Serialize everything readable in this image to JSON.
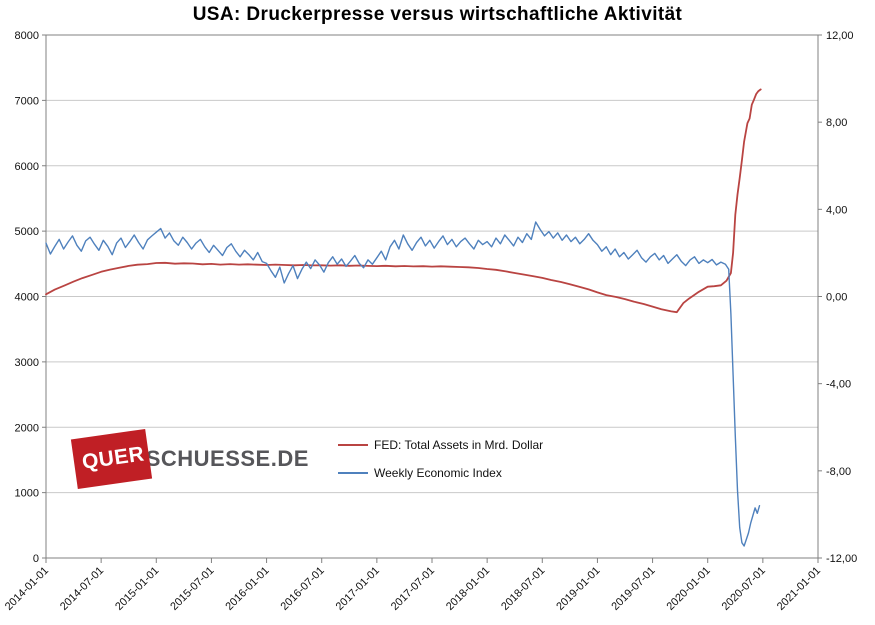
{
  "watermark": {
    "part1": "QUER",
    "part2": "SCHUESSE.DE"
  },
  "chart_data": {
    "type": "line",
    "title": "USA: Druckerpresse versus wirtschaftliche Aktivität",
    "x_range": [
      2014.0,
      2021.0
    ],
    "grid_color": "#c9c9c9",
    "border_color": "#808080",
    "y_left": {
      "min": 0,
      "max": 8000,
      "ticks": [
        "0",
        "1000",
        "2000",
        "3000",
        "4000",
        "5000",
        "6000",
        "7000",
        "8000"
      ]
    },
    "y_right": {
      "min": -12,
      "max": 12,
      "ticks": [
        "-12,00",
        "-8,00",
        "-4,00",
        "0,00",
        "4,00",
        "8,00",
        "12,00"
      ]
    },
    "x_ticks": [
      {
        "x": 2014.0,
        "label": "2014-01-01"
      },
      {
        "x": 2014.5,
        "label": "2014-07-01"
      },
      {
        "x": 2015.0,
        "label": "2015-01-01"
      },
      {
        "x": 2015.5,
        "label": "2015-07-01"
      },
      {
        "x": 2016.0,
        "label": "2016-01-01"
      },
      {
        "x": 2016.5,
        "label": "2016-07-01"
      },
      {
        "x": 2017.0,
        "label": "2017-01-01"
      },
      {
        "x": 2017.5,
        "label": "2017-07-01"
      },
      {
        "x": 2018.0,
        "label": "2018-01-01"
      },
      {
        "x": 2018.5,
        "label": "2018-07-01"
      },
      {
        "x": 2019.0,
        "label": "2019-01-01"
      },
      {
        "x": 2019.5,
        "label": "2019-07-01"
      },
      {
        "x": 2020.0,
        "label": "2020-01-01"
      },
      {
        "x": 2020.5,
        "label": "2020-07-01"
      },
      {
        "x": 2021.0,
        "label": "2021-01-01"
      }
    ],
    "series": [
      {
        "name": "FED: Total Assets in Mrd. Dollar",
        "color": "#b94442",
        "axis": "left",
        "width": 1.8,
        "points": [
          [
            2014.0,
            4033
          ],
          [
            2014.08,
            4105
          ],
          [
            2014.17,
            4170
          ],
          [
            2014.25,
            4228
          ],
          [
            2014.33,
            4282
          ],
          [
            2014.42,
            4332
          ],
          [
            2014.5,
            4378
          ],
          [
            2014.58,
            4412
          ],
          [
            2014.67,
            4442
          ],
          [
            2014.75,
            4468
          ],
          [
            2014.83,
            4486
          ],
          [
            2014.92,
            4496
          ],
          [
            2015.0,
            4512
          ],
          [
            2015.08,
            4516
          ],
          [
            2015.17,
            4502
          ],
          [
            2015.25,
            4508
          ],
          [
            2015.33,
            4505
          ],
          [
            2015.42,
            4492
          ],
          [
            2015.5,
            4498
          ],
          [
            2015.58,
            4488
          ],
          [
            2015.67,
            4495
          ],
          [
            2015.75,
            4488
          ],
          [
            2015.83,
            4492
          ],
          [
            2015.92,
            4486
          ],
          [
            2016.0,
            4482
          ],
          [
            2016.08,
            4488
          ],
          [
            2016.17,
            4482
          ],
          [
            2016.25,
            4478
          ],
          [
            2016.33,
            4482
          ],
          [
            2016.42,
            4475
          ],
          [
            2016.5,
            4478
          ],
          [
            2016.58,
            4472
          ],
          [
            2016.67,
            4478
          ],
          [
            2016.75,
            4470
          ],
          [
            2016.83,
            4474
          ],
          [
            2016.92,
            4468
          ],
          [
            2017.0,
            4465
          ],
          [
            2017.08,
            4470
          ],
          [
            2017.17,
            4462
          ],
          [
            2017.25,
            4466
          ],
          [
            2017.33,
            4460
          ],
          [
            2017.42,
            4464
          ],
          [
            2017.5,
            4458
          ],
          [
            2017.58,
            4462
          ],
          [
            2017.67,
            4456
          ],
          [
            2017.75,
            4452
          ],
          [
            2017.83,
            4446
          ],
          [
            2017.92,
            4436
          ],
          [
            2018.0,
            4420
          ],
          [
            2018.08,
            4408
          ],
          [
            2018.17,
            4384
          ],
          [
            2018.25,
            4360
          ],
          [
            2018.33,
            4336
          ],
          [
            2018.42,
            4310
          ],
          [
            2018.5,
            4284
          ],
          [
            2018.58,
            4252
          ],
          [
            2018.67,
            4222
          ],
          [
            2018.75,
            4188
          ],
          [
            2018.83,
            4152
          ],
          [
            2018.92,
            4108
          ],
          [
            2019.0,
            4062
          ],
          [
            2019.08,
            4022
          ],
          [
            2019.17,
            3992
          ],
          [
            2019.25,
            3960
          ],
          [
            2019.33,
            3922
          ],
          [
            2019.42,
            3886
          ],
          [
            2019.5,
            3846
          ],
          [
            2019.58,
            3806
          ],
          [
            2019.67,
            3772
          ],
          [
            2019.72,
            3760
          ],
          [
            2019.78,
            3902
          ],
          [
            2019.83,
            3968
          ],
          [
            2019.92,
            4072
          ],
          [
            2020.0,
            4150
          ],
          [
            2020.06,
            4158
          ],
          [
            2020.12,
            4172
          ],
          [
            2020.17,
            4242
          ],
          [
            2020.21,
            4360
          ],
          [
            2020.23,
            4668
          ],
          [
            2020.25,
            5250
          ],
          [
            2020.27,
            5560
          ],
          [
            2020.29,
            5812
          ],
          [
            2020.31,
            6082
          ],
          [
            2020.33,
            6368
          ],
          [
            2020.36,
            6650
          ],
          [
            2020.38,
            6722
          ],
          [
            2020.4,
            6934
          ],
          [
            2020.42,
            7012
          ],
          [
            2020.44,
            7098
          ],
          [
            2020.46,
            7142
          ],
          [
            2020.48,
            7168
          ]
        ]
      },
      {
        "name": "Weekly Economic Index",
        "color": "#4f81bd",
        "axis": "right",
        "width": 1.4,
        "x0": 2014.0,
        "dx": 0.04,
        "values": [
          2.45,
          1.95,
          2.3,
          2.62,
          2.18,
          2.5,
          2.78,
          2.35,
          2.08,
          2.55,
          2.72,
          2.4,
          2.12,
          2.58,
          2.3,
          1.92,
          2.45,
          2.68,
          2.25,
          2.52,
          2.82,
          2.48,
          2.18,
          2.6,
          2.78,
          2.95,
          3.12,
          2.68,
          2.92,
          2.55,
          2.35,
          2.72,
          2.48,
          2.18,
          2.45,
          2.62,
          2.28,
          2.02,
          2.35,
          2.12,
          1.88,
          2.25,
          2.42,
          2.08,
          1.82,
          2.12,
          1.92,
          1.68,
          2.02,
          1.6,
          1.52,
          1.18,
          0.88,
          1.35,
          0.62,
          1.05,
          1.42,
          0.82,
          1.25,
          1.58,
          1.28,
          1.68,
          1.45,
          1.12,
          1.55,
          1.82,
          1.48,
          1.72,
          1.38,
          1.62,
          1.88,
          1.52,
          1.32,
          1.68,
          1.48,
          1.78,
          2.08,
          1.68,
          2.28,
          2.58,
          2.18,
          2.82,
          2.42,
          2.12,
          2.48,
          2.72,
          2.32,
          2.58,
          2.22,
          2.52,
          2.78,
          2.38,
          2.62,
          2.28,
          2.52,
          2.68,
          2.42,
          2.18,
          2.58,
          2.38,
          2.52,
          2.28,
          2.68,
          2.42,
          2.82,
          2.58,
          2.32,
          2.72,
          2.48,
          2.88,
          2.62,
          3.42,
          3.08,
          2.78,
          2.98,
          2.68,
          2.92,
          2.58,
          2.82,
          2.52,
          2.72,
          2.42,
          2.62,
          2.88,
          2.58,
          2.38,
          2.08,
          2.28,
          1.92,
          2.18,
          1.82,
          2.02,
          1.72,
          1.92,
          2.12,
          1.78,
          1.58,
          1.82,
          1.98,
          1.68,
          1.88,
          1.52,
          1.72,
          1.92,
          1.62,
          1.42,
          1.68,
          1.82,
          1.52,
          1.68
        ],
        "tail": [
          [
            2020.0,
            1.55
          ],
          [
            2020.04,
            1.7
          ],
          [
            2020.08,
            1.45
          ],
          [
            2020.12,
            1.58
          ],
          [
            2020.16,
            1.48
          ],
          [
            2020.19,
            1.25
          ],
          [
            2020.21,
            -0.8
          ],
          [
            2020.23,
            -3.6
          ],
          [
            2020.25,
            -6.4
          ],
          [
            2020.27,
            -8.9
          ],
          [
            2020.29,
            -10.6
          ],
          [
            2020.31,
            -11.3
          ],
          [
            2020.33,
            -11.45
          ],
          [
            2020.35,
            -11.15
          ],
          [
            2020.37,
            -10.85
          ],
          [
            2020.39,
            -10.4
          ],
          [
            2020.41,
            -10.05
          ],
          [
            2020.43,
            -9.7
          ],
          [
            2020.45,
            -9.95
          ],
          [
            2020.47,
            -9.6
          ]
        ]
      }
    ],
    "legend_position": "inside-center-bottom"
  }
}
